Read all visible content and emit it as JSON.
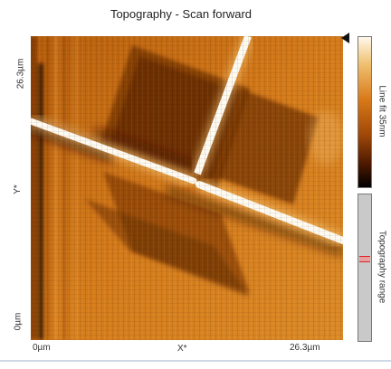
{
  "title": "Topography - Scan forward",
  "axes": {
    "y_top": "26.3µm",
    "y_mid": "Y*",
    "y_bottom": "0µm",
    "x_left": "0µm",
    "x_mid": "X*",
    "x_right": "26.3µm"
  },
  "colorbar": {
    "label": "Line fit 35nm",
    "gradient": [
      "#fff8ec",
      "#f0c070",
      "#d87818",
      "#a04808",
      "#4a1800",
      "#000000"
    ]
  },
  "range_bar": {
    "label": "Topography range"
  },
  "colors": {
    "background": "#d8801c",
    "dark": "#3a1400",
    "highlight": "#fffaf0"
  }
}
